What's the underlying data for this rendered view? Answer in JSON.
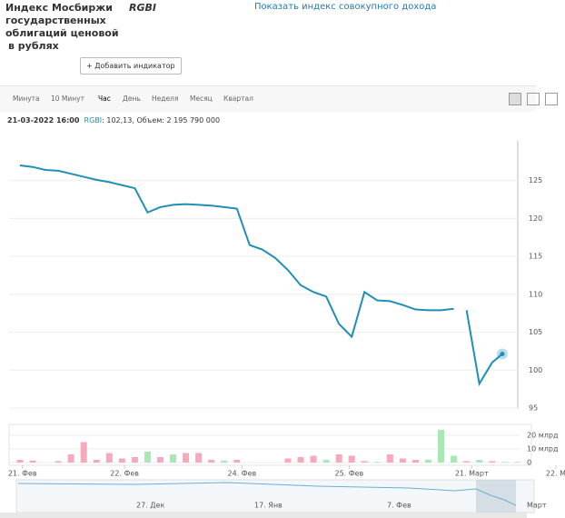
{
  "header": {
    "title_lines": [
      "Индекс Мосбиржи",
      "государственных",
      "облигаций ценовой",
      "в рублях"
    ],
    "ticker": "RGBI",
    "link": "Показать индекс совокупного дохода",
    "button": "+ Добавить индикатор"
  },
  "tabs": [
    "Минута",
    "10 Минут",
    "Час",
    "День",
    "Неделя",
    "Месяц",
    "Квартал"
  ],
  "info": {
    "date": "21-03-2022 16:00",
    "ticker": "RGBI",
    "text": ": 102,13, Объем: 2 195 790 000"
  },
  "navigator": {
    "labels": [
      "27. Дек",
      "17. Янв",
      "7. Фев",
      "Март"
    ]
  },
  "chart_data": [
    {
      "type": "line",
      "color": "#1f8fb5",
      "x": [
        0,
        1,
        2,
        3,
        4,
        5,
        6,
        7,
        8,
        9,
        10,
        11,
        12,
        13,
        14,
        15,
        16,
        17,
        18,
        19,
        20,
        21,
        22,
        23,
        24,
        25,
        26,
        27,
        28,
        29,
        30,
        31,
        32,
        33,
        34,
        34.5,
        35,
        36,
        37,
        37.8
      ],
      "values": [
        127.0,
        126.8,
        126.4,
        126.3,
        125.9,
        125.5,
        125.1,
        124.8,
        124.4,
        124.0,
        120.8,
        121.5,
        121.8,
        121.9,
        121.8,
        121.7,
        121.5,
        121.3,
        116.5,
        115.9,
        114.8,
        113.2,
        111.2,
        110.3,
        109.7,
        106.1,
        104.4,
        110.3,
        109.2,
        109.1,
        108.6,
        108.0,
        107.9,
        107.9,
        108.1,
        null,
        107.9,
        98.2,
        101.0,
        102.13
      ],
      "ylim": [
        95,
        130
      ],
      "yticks": [
        95,
        100,
        105,
        110,
        115,
        120,
        125
      ],
      "xlim": [
        -0.85,
        42.5
      ],
      "xticks": [
        {
          "value": 0.2,
          "label": "21. Фев"
        },
        {
          "value": 8.2,
          "label": "22. Фев"
        },
        {
          "value": 17.4,
          "label": "24. Фев"
        },
        {
          "value": 25.8,
          "label": "25. Фев"
        },
        {
          "value": 35.4,
          "label": "21. Март"
        },
        {
          "value": 42,
          "label": "22. М"
        }
      ]
    },
    {
      "type": "bar",
      "x": [
        0,
        1,
        3,
        4,
        5,
        6,
        7,
        8,
        9,
        10,
        11,
        12,
        13,
        14,
        15,
        16,
        17,
        21,
        22,
        23,
        24,
        25,
        26,
        27,
        28,
        29,
        30,
        31,
        32,
        33,
        34,
        35,
        36,
        37,
        38,
        39
      ],
      "values": [
        2,
        1.5,
        1,
        6,
        15,
        2,
        7,
        3,
        4,
        8,
        4,
        6,
        7,
        7,
        2,
        1.5,
        2,
        3,
        4,
        5,
        2,
        6,
        5,
        1,
        0.5,
        6,
        3,
        2,
        2,
        24,
        5,
        1,
        2,
        1,
        0.5,
        0.5
      ],
      "colors": [
        "#f5a9bb",
        "#f5a9bb",
        "#f5a9bb",
        "#f5a9bb",
        "#f5a9bb",
        "#f5a9bb",
        "#f5a9bb",
        "#f5a9bb",
        "#f5a9bb",
        "#a9e8b4",
        "#f5a9bb",
        "#a9e8b4",
        "#f5a9bb",
        "#f5a9bb",
        "#f5a9bb",
        "#a9e8b4",
        "#f5a9bb",
        "#f5a9bb",
        "#f5a9bb",
        "#f5a9bb",
        "#a9e8b4",
        "#f5a9bb",
        "#f5a9bb",
        "#f5a9bb",
        "#a9e8b4",
        "#f5a9bb",
        "#f5a9bb",
        "#f5a9bb",
        "#a9e8b4",
        "#a9e8b4",
        "#a9e8b4",
        "#f5a9bb",
        "#a9e8b4",
        "#f5a9bb",
        "#a9e8b4",
        "#a9e8b4"
      ],
      "ylim": [
        0,
        28
      ],
      "yticks": [
        0,
        {
          "value": 10,
          "label": "10 млрд"
        },
        {
          "value": 20,
          "label": "20 млрд"
        }
      ]
    }
  ]
}
